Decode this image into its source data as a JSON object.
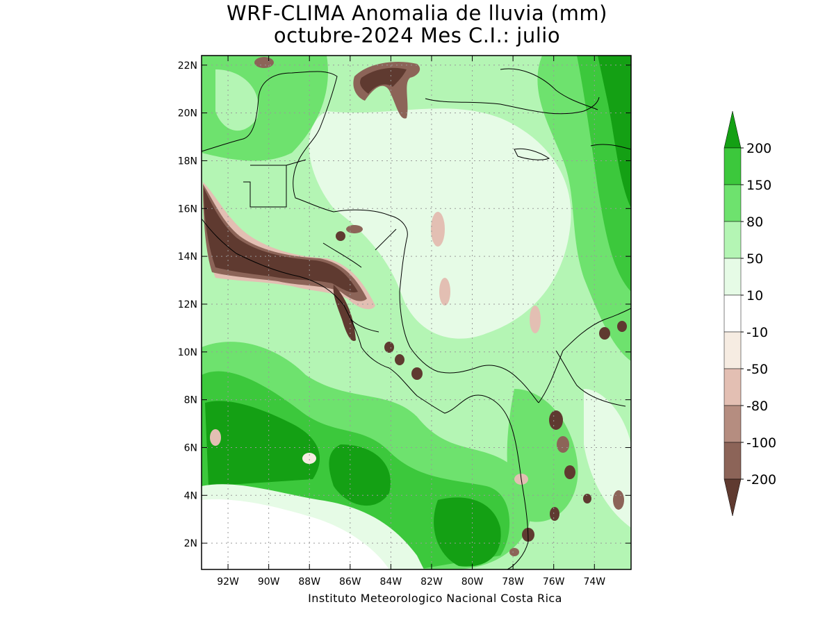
{
  "map": {
    "title_line1": "WRF-CLIMA Anomalia de lluvia (mm)",
    "title_line2": "octubre-2024 Mes C.I.: julio",
    "credit": "Instituto Meteorologico Nacional Costa Rica",
    "x_ticks": [
      "92W",
      "90W",
      "88W",
      "86W",
      "84W",
      "82W",
      "80W",
      "78W",
      "76W",
      "74W"
    ],
    "y_ticks": [
      "22N",
      "20N",
      "18N",
      "16N",
      "14N",
      "12N",
      "10N",
      "8N",
      "6N",
      "4N",
      "2N"
    ],
    "lon_range": [
      -93.3,
      -72.2
    ],
    "lat_range": [
      0.9,
      22.4
    ],
    "grid": true,
    "colors": {
      "dark_brown": "#5f3a30",
      "medium_brown": "#8c6458",
      "light_brown": "#b58d80",
      "pale_pink": "#e3bfb3",
      "cream": "#f6ece2",
      "pale_green": "#e6fbe6",
      "light_green": "#b4f5b4",
      "medium_green": "#6ee26e",
      "green": "#3cc83c",
      "dark_green": "#14a014"
    }
  },
  "legend": {
    "labels": [
      "200",
      "150",
      "80",
      "50",
      "10",
      "-10",
      "-50",
      "-80",
      "-100",
      "-200"
    ],
    "colors": [
      "#14a014",
      "#3cc83c",
      "#6ee26e",
      "#b4f5b4",
      "#e6fbe6",
      "#ffffff",
      "#f6ece2",
      "#e3bfb3",
      "#b58d80",
      "#8c6458",
      "#5f3a30"
    ]
  }
}
